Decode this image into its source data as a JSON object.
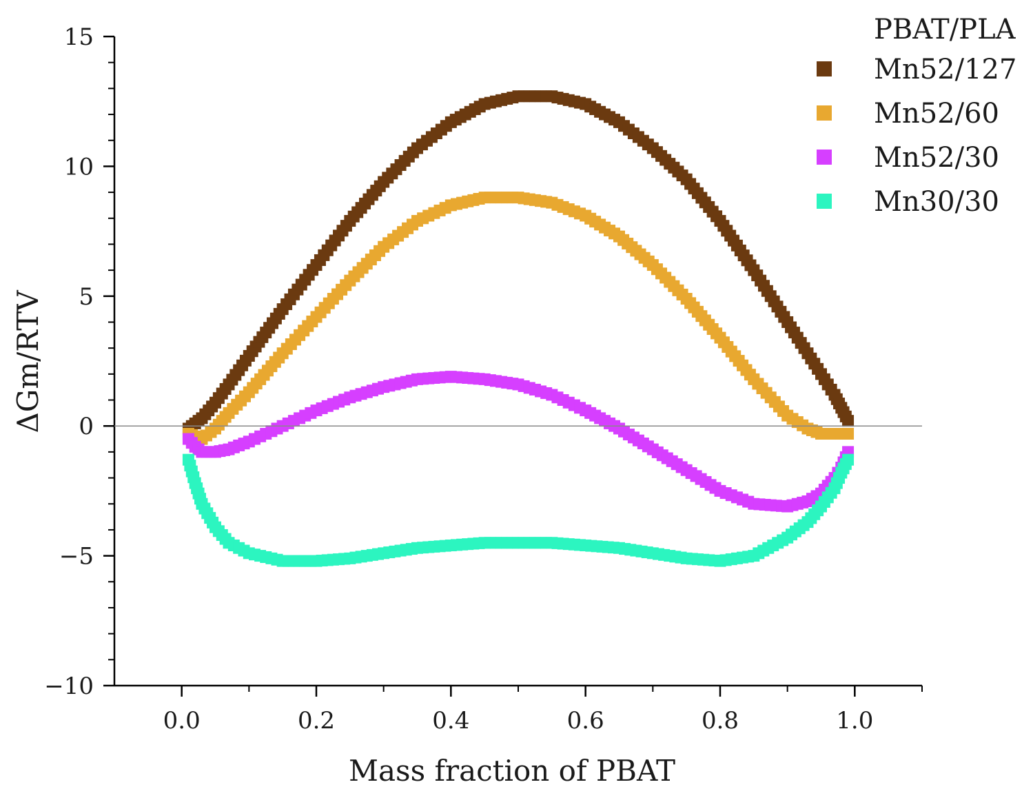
{
  "chart_data": {
    "type": "scatter",
    "title": "",
    "xlabel": "Mass fraction of PBAT",
    "ylabel": "ΔGm/RTV",
    "xlim": [
      -0.1,
      1.1
    ],
    "ylim": [
      -10,
      15
    ],
    "x_ticks": [
      0.0,
      0.2,
      0.4,
      0.6,
      0.8,
      1.0
    ],
    "x_tick_labels": [
      "0.0",
      "0.2",
      "0.4",
      "0.6",
      "0.8",
      "1.0"
    ],
    "y_ticks": [
      -10,
      -5,
      0,
      5,
      10,
      15
    ],
    "y_tick_labels": [
      "−10",
      "−5",
      "0",
      "5",
      "10",
      "15"
    ],
    "reference_line_y": 0,
    "legend": {
      "title": "PBAT/PLA",
      "placement": "top-right"
    },
    "x": [
      0.01,
      0.02,
      0.03,
      0.05,
      0.07,
      0.1,
      0.15,
      0.2,
      0.25,
      0.3,
      0.35,
      0.4,
      0.45,
      0.5,
      0.55,
      0.6,
      0.65,
      0.7,
      0.75,
      0.8,
      0.85,
      0.9,
      0.93,
      0.95,
      0.97,
      0.98,
      0.99
    ],
    "series": [
      {
        "name": "Mn52/127",
        "color": "#6b3a10",
        "values": [
          -0.1,
          0.1,
          0.3,
          0.9,
          1.6,
          2.7,
          4.5,
          6.2,
          7.9,
          9.4,
          10.7,
          11.7,
          12.4,
          12.7,
          12.7,
          12.4,
          11.7,
          10.7,
          9.5,
          7.9,
          6.0,
          4.0,
          2.8,
          2.0,
          1.2,
          0.7,
          0.2
        ]
      },
      {
        "name": "Mn52/60",
        "color": "#e8a830",
        "values": [
          -0.3,
          -0.4,
          -0.5,
          -0.1,
          0.5,
          1.3,
          2.8,
          4.2,
          5.6,
          6.9,
          7.9,
          8.5,
          8.8,
          8.8,
          8.6,
          8.1,
          7.3,
          6.2,
          4.9,
          3.4,
          1.8,
          0.4,
          -0.1,
          -0.3,
          -0.3,
          -0.3,
          -0.3
        ]
      },
      {
        "name": "Mn52/30",
        "color": "#d63fff",
        "values": [
          -0.5,
          -0.8,
          -1.0,
          -1.0,
          -0.9,
          -0.6,
          0.0,
          0.6,
          1.1,
          1.5,
          1.8,
          1.9,
          1.8,
          1.6,
          1.2,
          0.6,
          -0.1,
          -0.9,
          -1.7,
          -2.5,
          -3.0,
          -3.1,
          -2.9,
          -2.6,
          -2.0,
          -1.6,
          -1.0
        ]
      },
      {
        "name": "Mn30/30",
        "color": "#2cf5c0",
        "values": [
          -1.3,
          -2.2,
          -3.0,
          -3.9,
          -4.5,
          -4.9,
          -5.2,
          -5.2,
          -5.1,
          -4.9,
          -4.7,
          -4.6,
          -4.5,
          -4.5,
          -4.5,
          -4.6,
          -4.7,
          -4.9,
          -5.1,
          -5.2,
          -5.0,
          -4.3,
          -3.7,
          -3.1,
          -2.4,
          -1.8,
          -1.3
        ]
      }
    ]
  }
}
